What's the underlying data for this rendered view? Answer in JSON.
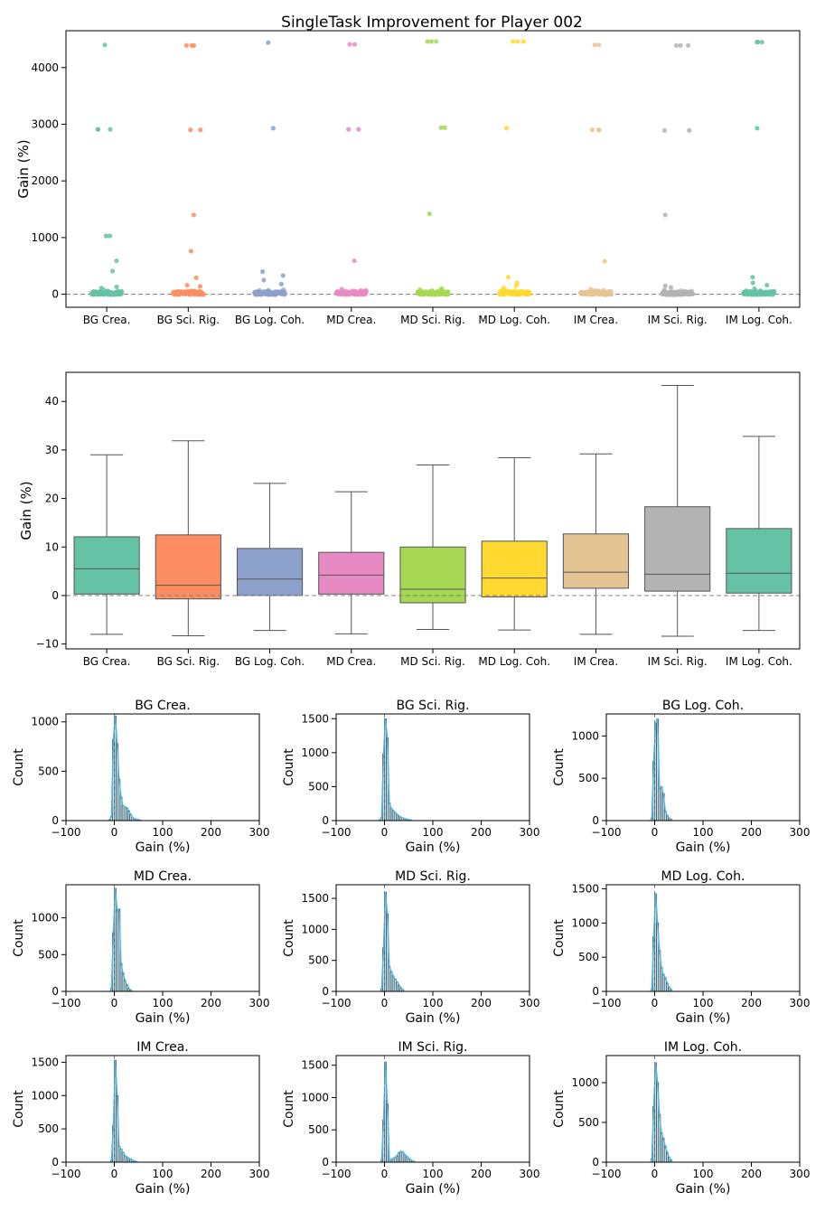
{
  "figure_title": "SingleTask Improvement for Player 002",
  "colors": {
    "BG Crea.": "#66c2a5",
    "BG Sci. Rig.": "#fc8d62",
    "BG Log. Coh.": "#8da0cb",
    "MD Crea.": "#e78ac3",
    "MD Sci. Rig.": "#a6d854",
    "MD Log. Coh.": "#ffd92f",
    "IM Crea.": "#e5c494",
    "IM Sci. Rig.": "#b3b3b3",
    "IM Log. Coh.": "#66c2a5",
    "hist_bar": "#87ceeb",
    "kde": "#4fb8e0",
    "reference_line": "#808080"
  },
  "chart_data": [
    {
      "type": "scatter",
      "subtype": "strip",
      "title": "SingleTask Improvement for Player 002",
      "xlabel": "",
      "ylabel": "Gain (%)",
      "categories": [
        "BG Crea.",
        "BG Sci. Rig.",
        "BG Log. Coh.",
        "MD Crea.",
        "MD Sci. Rig.",
        "MD Log. Coh.",
        "IM Crea.",
        "IM Sci. Rig.",
        "IM Log. Coh."
      ],
      "ylim": [
        -230,
        4650
      ],
      "yticks": [
        0,
        1000,
        2000,
        3000,
        4000
      ],
      "reference_line_y": 0,
      "outliers": [
        [
          4400,
          2910,
          2910,
          2910,
          1030,
          1030,
          590,
          410,
          130,
          110
        ],
        [
          4390,
          4390,
          4390,
          2900,
          2900,
          1400,
          760,
          290,
          160,
          140
        ],
        [
          4440,
          2930,
          400,
          330,
          250,
          180
        ],
        [
          4410,
          4410,
          2910,
          2910,
          590,
          90
        ],
        [
          4460,
          4460,
          4460,
          2940,
          2940,
          1420,
          100,
          80
        ],
        [
          4460,
          4460,
          4460,
          2930,
          300,
          200,
          150,
          110
        ],
        [
          4400,
          4400,
          2900,
          2900,
          2900,
          580,
          90
        ],
        [
          4390,
          4390,
          4390,
          2890,
          2890,
          1400,
          150,
          120
        ],
        [
          4450,
          4450,
          4450,
          2930,
          300,
          200,
          160,
          100
        ]
      ],
      "grid": false
    },
    {
      "type": "box",
      "xlabel": "",
      "ylabel": "Gain (%)",
      "categories": [
        "BG Crea.",
        "BG Sci. Rig.",
        "BG Log. Coh.",
        "MD Crea.",
        "MD Sci. Rig.",
        "MD Log. Coh.",
        "IM Crea.",
        "IM Sci. Rig.",
        "IM Log. Coh."
      ],
      "ylim": [
        -11,
        46
      ],
      "yticks": [
        -10,
        0,
        10,
        20,
        30,
        40
      ],
      "reference_line_y": 0,
      "boxes": [
        {
          "whisker_low": -8.0,
          "q1": 0.3,
          "median": 5.5,
          "q3": 12.1,
          "whisker_high": 29.0
        },
        {
          "whisker_low": -8.3,
          "q1": -0.7,
          "median": 2.1,
          "q3": 12.5,
          "whisker_high": 31.9
        },
        {
          "whisker_low": -7.2,
          "q1": 0.0,
          "median": 3.4,
          "q3": 9.7,
          "whisker_high": 23.1
        },
        {
          "whisker_low": -7.9,
          "q1": 0.3,
          "median": 4.2,
          "q3": 8.9,
          "whisker_high": 21.4
        },
        {
          "whisker_low": -7.0,
          "q1": -1.5,
          "median": 1.3,
          "q3": 10.0,
          "whisker_high": 26.9
        },
        {
          "whisker_low": -7.1,
          "q1": -0.3,
          "median": 3.6,
          "q3": 11.2,
          "whisker_high": 28.4
        },
        {
          "whisker_low": -8.0,
          "q1": 1.5,
          "median": 4.8,
          "q3": 12.7,
          "whisker_high": 29.2
        },
        {
          "whisker_low": -8.4,
          "q1": 0.9,
          "median": 4.4,
          "q3": 18.3,
          "whisker_high": 43.3
        },
        {
          "whisker_low": -7.2,
          "q1": 0.5,
          "median": 4.6,
          "q3": 13.8,
          "whisker_high": 32.8
        }
      ],
      "grid": false
    },
    {
      "type": "bar",
      "subtype": "histogram_with_kde",
      "xlabel": "Gain (%)",
      "ylabel": "Count",
      "xlim": [
        -100,
        300
      ],
      "xticks": [
        -100,
        0,
        100,
        200,
        300
      ],
      "reference_line_x": 0,
      "bin_width": 4,
      "panels": [
        {
          "title": "BG Crea.",
          "ylim": [
            0,
            1080
          ],
          "yticks": [
            0,
            500,
            1000
          ],
          "bins": [
            {
              "x": -12,
              "count": 10
            },
            {
              "x": -8,
              "count": 40
            },
            {
              "x": -4,
              "count": 820
            },
            {
              "x": 0,
              "count": 1060
            },
            {
              "x": 4,
              "count": 780
            },
            {
              "x": 8,
              "count": 420
            },
            {
              "x": 12,
              "count": 240
            },
            {
              "x": 16,
              "count": 150
            },
            {
              "x": 20,
              "count": 140
            },
            {
              "x": 24,
              "count": 130
            },
            {
              "x": 28,
              "count": 100
            },
            {
              "x": 32,
              "count": 60
            },
            {
              "x": 36,
              "count": 30
            },
            {
              "x": 40,
              "count": 20
            },
            {
              "x": 44,
              "count": 15
            },
            {
              "x": 48,
              "count": 10
            },
            {
              "x": 52,
              "count": 5
            }
          ]
        },
        {
          "title": "BG Sci. Rig.",
          "ylim": [
            0,
            1570
          ],
          "yticks": [
            0,
            500,
            1000,
            1500
          ],
          "bins": [
            {
              "x": -12,
              "count": 10
            },
            {
              "x": -8,
              "count": 40
            },
            {
              "x": -4,
              "count": 980
            },
            {
              "x": 0,
              "count": 1500
            },
            {
              "x": 4,
              "count": 1220
            },
            {
              "x": 8,
              "count": 260
            },
            {
              "x": 12,
              "count": 180
            },
            {
              "x": 16,
              "count": 150
            },
            {
              "x": 20,
              "count": 120
            },
            {
              "x": 24,
              "count": 90
            },
            {
              "x": 28,
              "count": 70
            },
            {
              "x": 32,
              "count": 50
            },
            {
              "x": 36,
              "count": 40
            },
            {
              "x": 40,
              "count": 30
            },
            {
              "x": 44,
              "count": 20
            },
            {
              "x": 48,
              "count": 15
            },
            {
              "x": 52,
              "count": 10
            }
          ]
        },
        {
          "title": "BG Log. Coh.",
          "ylim": [
            0,
            1260
          ],
          "yticks": [
            0,
            500,
            1000
          ],
          "bins": [
            {
              "x": -8,
              "count": 30
            },
            {
              "x": -4,
              "count": 700
            },
            {
              "x": 0,
              "count": 1150
            },
            {
              "x": 4,
              "count": 1200
            },
            {
              "x": 8,
              "count": 380
            },
            {
              "x": 12,
              "count": 400
            },
            {
              "x": 16,
              "count": 320
            },
            {
              "x": 20,
              "count": 110
            },
            {
              "x": 24,
              "count": 60
            },
            {
              "x": 28,
              "count": 30
            },
            {
              "x": 32,
              "count": 15
            }
          ]
        },
        {
          "title": "MD Crea.",
          "ylim": [
            0,
            1450
          ],
          "yticks": [
            0,
            500,
            1000
          ],
          "bins": [
            {
              "x": -8,
              "count": 40
            },
            {
              "x": -4,
              "count": 800
            },
            {
              "x": 0,
              "count": 1400
            },
            {
              "x": 4,
              "count": 1100
            },
            {
              "x": 8,
              "count": 1120
            },
            {
              "x": 12,
              "count": 380
            },
            {
              "x": 16,
              "count": 250
            },
            {
              "x": 20,
              "count": 150
            },
            {
              "x": 24,
              "count": 90
            },
            {
              "x": 28,
              "count": 40
            },
            {
              "x": 32,
              "count": 20
            }
          ]
        },
        {
          "title": "MD Sci. Rig.",
          "ylim": [
            0,
            1720
          ],
          "yticks": [
            0,
            500,
            1000,
            1500
          ],
          "bins": [
            {
              "x": -8,
              "count": 40
            },
            {
              "x": -4,
              "count": 700
            },
            {
              "x": 0,
              "count": 1600
            },
            {
              "x": 4,
              "count": 1250
            },
            {
              "x": 8,
              "count": 400
            },
            {
              "x": 12,
              "count": 320
            },
            {
              "x": 16,
              "count": 250
            },
            {
              "x": 20,
              "count": 200
            },
            {
              "x": 24,
              "count": 150
            },
            {
              "x": 28,
              "count": 100
            },
            {
              "x": 32,
              "count": 60
            },
            {
              "x": 36,
              "count": 30
            }
          ]
        },
        {
          "title": "MD Log. Coh.",
          "ylim": [
            0,
            1560
          ],
          "yticks": [
            0,
            500,
            1000,
            1500
          ],
          "bins": [
            {
              "x": -8,
              "count": 30
            },
            {
              "x": -4,
              "count": 800
            },
            {
              "x": 0,
              "count": 1430
            },
            {
              "x": 4,
              "count": 1000
            },
            {
              "x": 8,
              "count": 600
            },
            {
              "x": 12,
              "count": 350
            },
            {
              "x": 16,
              "count": 250
            },
            {
              "x": 20,
              "count": 200
            },
            {
              "x": 24,
              "count": 120
            },
            {
              "x": 28,
              "count": 60
            },
            {
              "x": 32,
              "count": 30
            }
          ]
        },
        {
          "title": "IM Crea.",
          "ylim": [
            0,
            1600
          ],
          "yticks": [
            0,
            500,
            1000,
            1500
          ],
          "bins": [
            {
              "x": -8,
              "count": 30
            },
            {
              "x": -4,
              "count": 550
            },
            {
              "x": 0,
              "count": 1530
            },
            {
              "x": 4,
              "count": 1000
            },
            {
              "x": 8,
              "count": 240
            },
            {
              "x": 12,
              "count": 200
            },
            {
              "x": 16,
              "count": 150
            },
            {
              "x": 20,
              "count": 100
            },
            {
              "x": 24,
              "count": 80
            },
            {
              "x": 28,
              "count": 60
            },
            {
              "x": 32,
              "count": 50
            },
            {
              "x": 36,
              "count": 30
            },
            {
              "x": 40,
              "count": 20
            },
            {
              "x": 44,
              "count": 10
            }
          ]
        },
        {
          "title": "IM Sci. Rig.",
          "ylim": [
            0,
            1650
          ],
          "yticks": [
            0,
            500,
            1000,
            1500
          ],
          "bins": [
            {
              "x": -8,
              "count": 30
            },
            {
              "x": -4,
              "count": 650
            },
            {
              "x": 0,
              "count": 1550
            },
            {
              "x": 4,
              "count": 900
            },
            {
              "x": 8,
              "count": 40
            },
            {
              "x": 12,
              "count": 40
            },
            {
              "x": 16,
              "count": 60
            },
            {
              "x": 20,
              "count": 80
            },
            {
              "x": 24,
              "count": 100
            },
            {
              "x": 28,
              "count": 150
            },
            {
              "x": 32,
              "count": 170
            },
            {
              "x": 36,
              "count": 160
            },
            {
              "x": 40,
              "count": 120
            },
            {
              "x": 44,
              "count": 90
            },
            {
              "x": 48,
              "count": 60
            },
            {
              "x": 52,
              "count": 40
            },
            {
              "x": 56,
              "count": 20
            },
            {
              "x": 60,
              "count": 10
            }
          ]
        },
        {
          "title": "IM Log. Coh.",
          "ylim": [
            0,
            1340
          ],
          "yticks": [
            0,
            500,
            1000
          ],
          "bins": [
            {
              "x": -8,
              "count": 40
            },
            {
              "x": -4,
              "count": 700
            },
            {
              "x": 0,
              "count": 1250
            },
            {
              "x": 4,
              "count": 1000
            },
            {
              "x": 8,
              "count": 600
            },
            {
              "x": 12,
              "count": 370
            },
            {
              "x": 16,
              "count": 300
            },
            {
              "x": 20,
              "count": 200
            },
            {
              "x": 24,
              "count": 120
            },
            {
              "x": 28,
              "count": 60
            },
            {
              "x": 32,
              "count": 30
            }
          ]
        }
      ],
      "grid": false
    }
  ]
}
